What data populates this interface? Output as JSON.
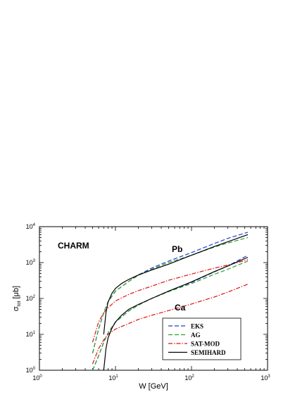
{
  "chart_data": {
    "type": "line",
    "x_scale": "log",
    "y_scale": "log",
    "xlim": [
      1,
      1000
    ],
    "ylim": [
      1,
      10000
    ],
    "xlabel": "W [GeV]",
    "ylabel": {
      "main": "σ",
      "sub": "tot",
      "unit": "[μb]"
    },
    "x_ticks": [
      {
        "value": 1,
        "base": "10",
        "exp": "0"
      },
      {
        "value": 10,
        "base": "10",
        "exp": "1"
      },
      {
        "value": 100,
        "base": "10",
        "exp": "2"
      },
      {
        "value": 1000,
        "base": "10",
        "exp": "3"
      }
    ],
    "y_ticks": [
      {
        "value": 1,
        "base": "10",
        "exp": "0"
      },
      {
        "value": 10,
        "base": "10",
        "exp": "1"
      },
      {
        "value": 100,
        "base": "10",
        "exp": "2"
      },
      {
        "value": 1000,
        "base": "10",
        "exp": "3"
      },
      {
        "value": 10000,
        "base": "10",
        "exp": "4"
      }
    ],
    "annotations": {
      "panel": "CHARM",
      "upper_group": "Pb",
      "lower_group": "Ca"
    },
    "legend_position": "bottom-right",
    "series": [
      {
        "name": "EKS",
        "style": "dashed",
        "color": "#1f3fd0",
        "group": "Pb",
        "x": [
          5,
          6,
          7,
          8,
          10,
          15,
          20,
          30,
          50,
          100,
          200,
          300,
          550
        ],
        "y": [
          3,
          14,
          40,
          80,
          160,
          300,
          450,
          700,
          1100,
          1900,
          3400,
          4700,
          7000
        ]
      },
      {
        "name": "AG",
        "style": "dashed",
        "color": "#2fa02f",
        "group": "Pb",
        "x": [
          5,
          6,
          7,
          8,
          10,
          15,
          20,
          30,
          50,
          100,
          200,
          300,
          550
        ],
        "y": [
          3,
          14,
          40,
          80,
          160,
          300,
          440,
          650,
          1000,
          1600,
          2700,
          3500,
          5000
        ]
      },
      {
        "name": "SAT-MOD",
        "style": "dash-dot",
        "color": "#e01010",
        "group": "Pb",
        "x": [
          5,
          6,
          7,
          8,
          10,
          15,
          20,
          30,
          50,
          100,
          200,
          300,
          550
        ],
        "y": [
          6,
          22,
          40,
          55,
          85,
          130,
          165,
          220,
          320,
          480,
          700,
          850,
          1200
        ]
      },
      {
        "name": "SEMIHARD",
        "style": "solid",
        "color": "#000000",
        "group": "Pb",
        "x": [
          7,
          7.5,
          8,
          9,
          10,
          12,
          15,
          20,
          30,
          50,
          100,
          200,
          300,
          550
        ],
        "y": [
          10,
          40,
          80,
          140,
          190,
          260,
          340,
          450,
          620,
          900,
          1600,
          2800,
          3800,
          6000
        ]
      },
      {
        "name": "EKS",
        "style": "dashed",
        "color": "#1f3fd0",
        "group": "Ca",
        "x": [
          5,
          6,
          7,
          8,
          10,
          15,
          20,
          30,
          50,
          100,
          200,
          300,
          550
        ],
        "y": [
          1,
          2.5,
          6,
          11,
          22,
          45,
          65,
          100,
          160,
          280,
          550,
          800,
          1600
        ]
      },
      {
        "name": "AG",
        "style": "dashed",
        "color": "#2fa02f",
        "group": "Ca",
        "x": [
          5,
          6,
          7,
          8,
          10,
          15,
          20,
          30,
          50,
          100,
          200,
          300,
          550
        ],
        "y": [
          1,
          2.5,
          6,
          11,
          22,
          45,
          65,
          100,
          155,
          260,
          470,
          650,
          1100
        ]
      },
      {
        "name": "SAT-MOD",
        "style": "dash-dot",
        "color": "#e01010",
        "group": "Ca",
        "x": [
          5,
          6,
          7,
          8,
          10,
          15,
          20,
          30,
          50,
          100,
          200,
          300,
          550
        ],
        "y": [
          1.5,
          4,
          7,
          10,
          14,
          20,
          26,
          34,
          46,
          70,
          110,
          150,
          250
        ]
      },
      {
        "name": "SEMIHARD",
        "style": "solid",
        "color": "#000000",
        "group": "Ca",
        "x": [
          7,
          7.5,
          8,
          9,
          10,
          12,
          15,
          20,
          30,
          50,
          100,
          200,
          300,
          550
        ],
        "y": [
          1,
          4,
          8,
          15,
          22,
          34,
          50,
          68,
          100,
          160,
          290,
          560,
          800,
          1400
        ]
      }
    ]
  }
}
